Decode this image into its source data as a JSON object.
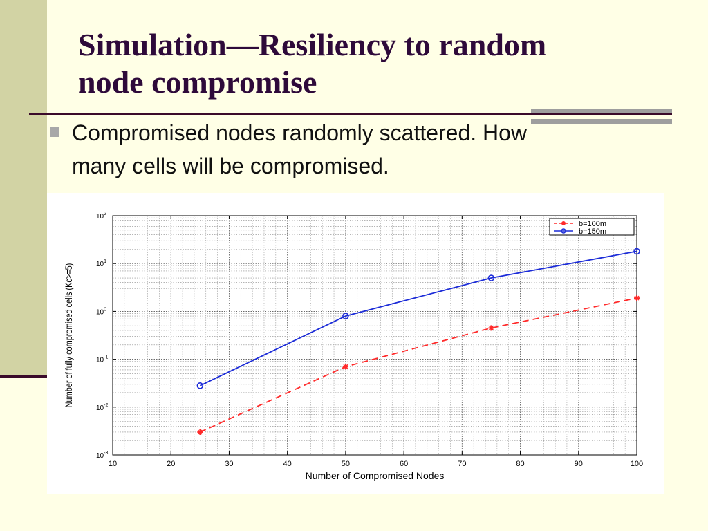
{
  "slide": {
    "title_lines": [
      "Simulation—Resiliency to random",
      "node compromise"
    ],
    "bullet": [
      "Compromised nodes randomly scattered. How",
      "many cells will be compromised."
    ]
  },
  "colors": {
    "background": "#FFFFE6",
    "side_band": "#D2D3A4",
    "title": "#2E0A3A",
    "series_1": "#FF2A2A",
    "series_2": "#1B2BD8"
  },
  "chart_data": {
    "type": "line",
    "xlabel": "Number of Compromised Nodes",
    "ylabel": "Number of fully compromised cells (Kc>=5)",
    "xlim": [
      10,
      100
    ],
    "ylim": [
      0.001,
      100
    ],
    "yscale": "log",
    "x_ticks": [
      10,
      20,
      30,
      40,
      50,
      60,
      70,
      80,
      90,
      100
    ],
    "y_ticks": [
      {
        "base": "10",
        "exp": "-3",
        "value": 0.001
      },
      {
        "base": "10",
        "exp": "-2",
        "value": 0.01
      },
      {
        "base": "10",
        "exp": "-1",
        "value": 0.1
      },
      {
        "base": "10",
        "exp": "0",
        "value": 1
      },
      {
        "base": "10",
        "exp": "1",
        "value": 10
      },
      {
        "base": "10",
        "exp": "2",
        "value": 100
      }
    ],
    "grid": true,
    "legend_position": "top-right",
    "series": [
      {
        "name": "b=100m",
        "style": "dashed",
        "marker": "star",
        "x": [
          25,
          50,
          75,
          100
        ],
        "y": [
          0.003,
          0.07,
          0.45,
          1.9
        ]
      },
      {
        "name": "b=150m",
        "style": "solid",
        "marker": "circle",
        "x": [
          25,
          50,
          75,
          100
        ],
        "y": [
          0.028,
          0.8,
          5.0,
          18.0
        ]
      }
    ]
  }
}
